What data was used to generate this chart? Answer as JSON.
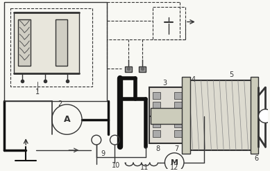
{
  "bg_color": "#f8f8f4",
  "line_color": "#333333",
  "fig_width": 3.89,
  "fig_height": 2.47,
  "dpi": 100
}
